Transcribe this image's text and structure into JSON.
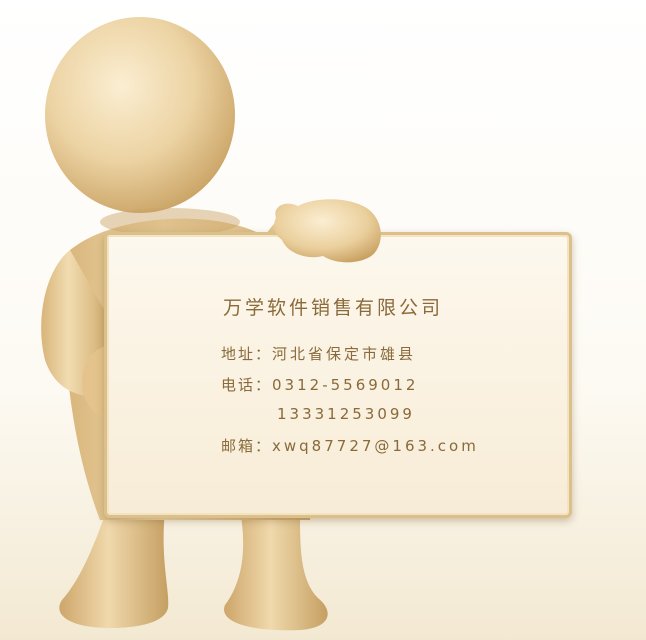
{
  "card": {
    "company": "万学软件销售有限公司",
    "address_label": "地址：",
    "address_value": "河北省保定市雄县",
    "phone_label": "电话：",
    "phone_value_1": "0312-5569012",
    "phone_value_2": "13331253099",
    "email_label": "邮箱：",
    "email_value": "xwq87727@163.com"
  },
  "colors": {
    "figure": "#e9cf9c",
    "card_border": "#dcc08c",
    "text": "#8a6a3a"
  },
  "icons": [
    "3d-person-figure"
  ]
}
